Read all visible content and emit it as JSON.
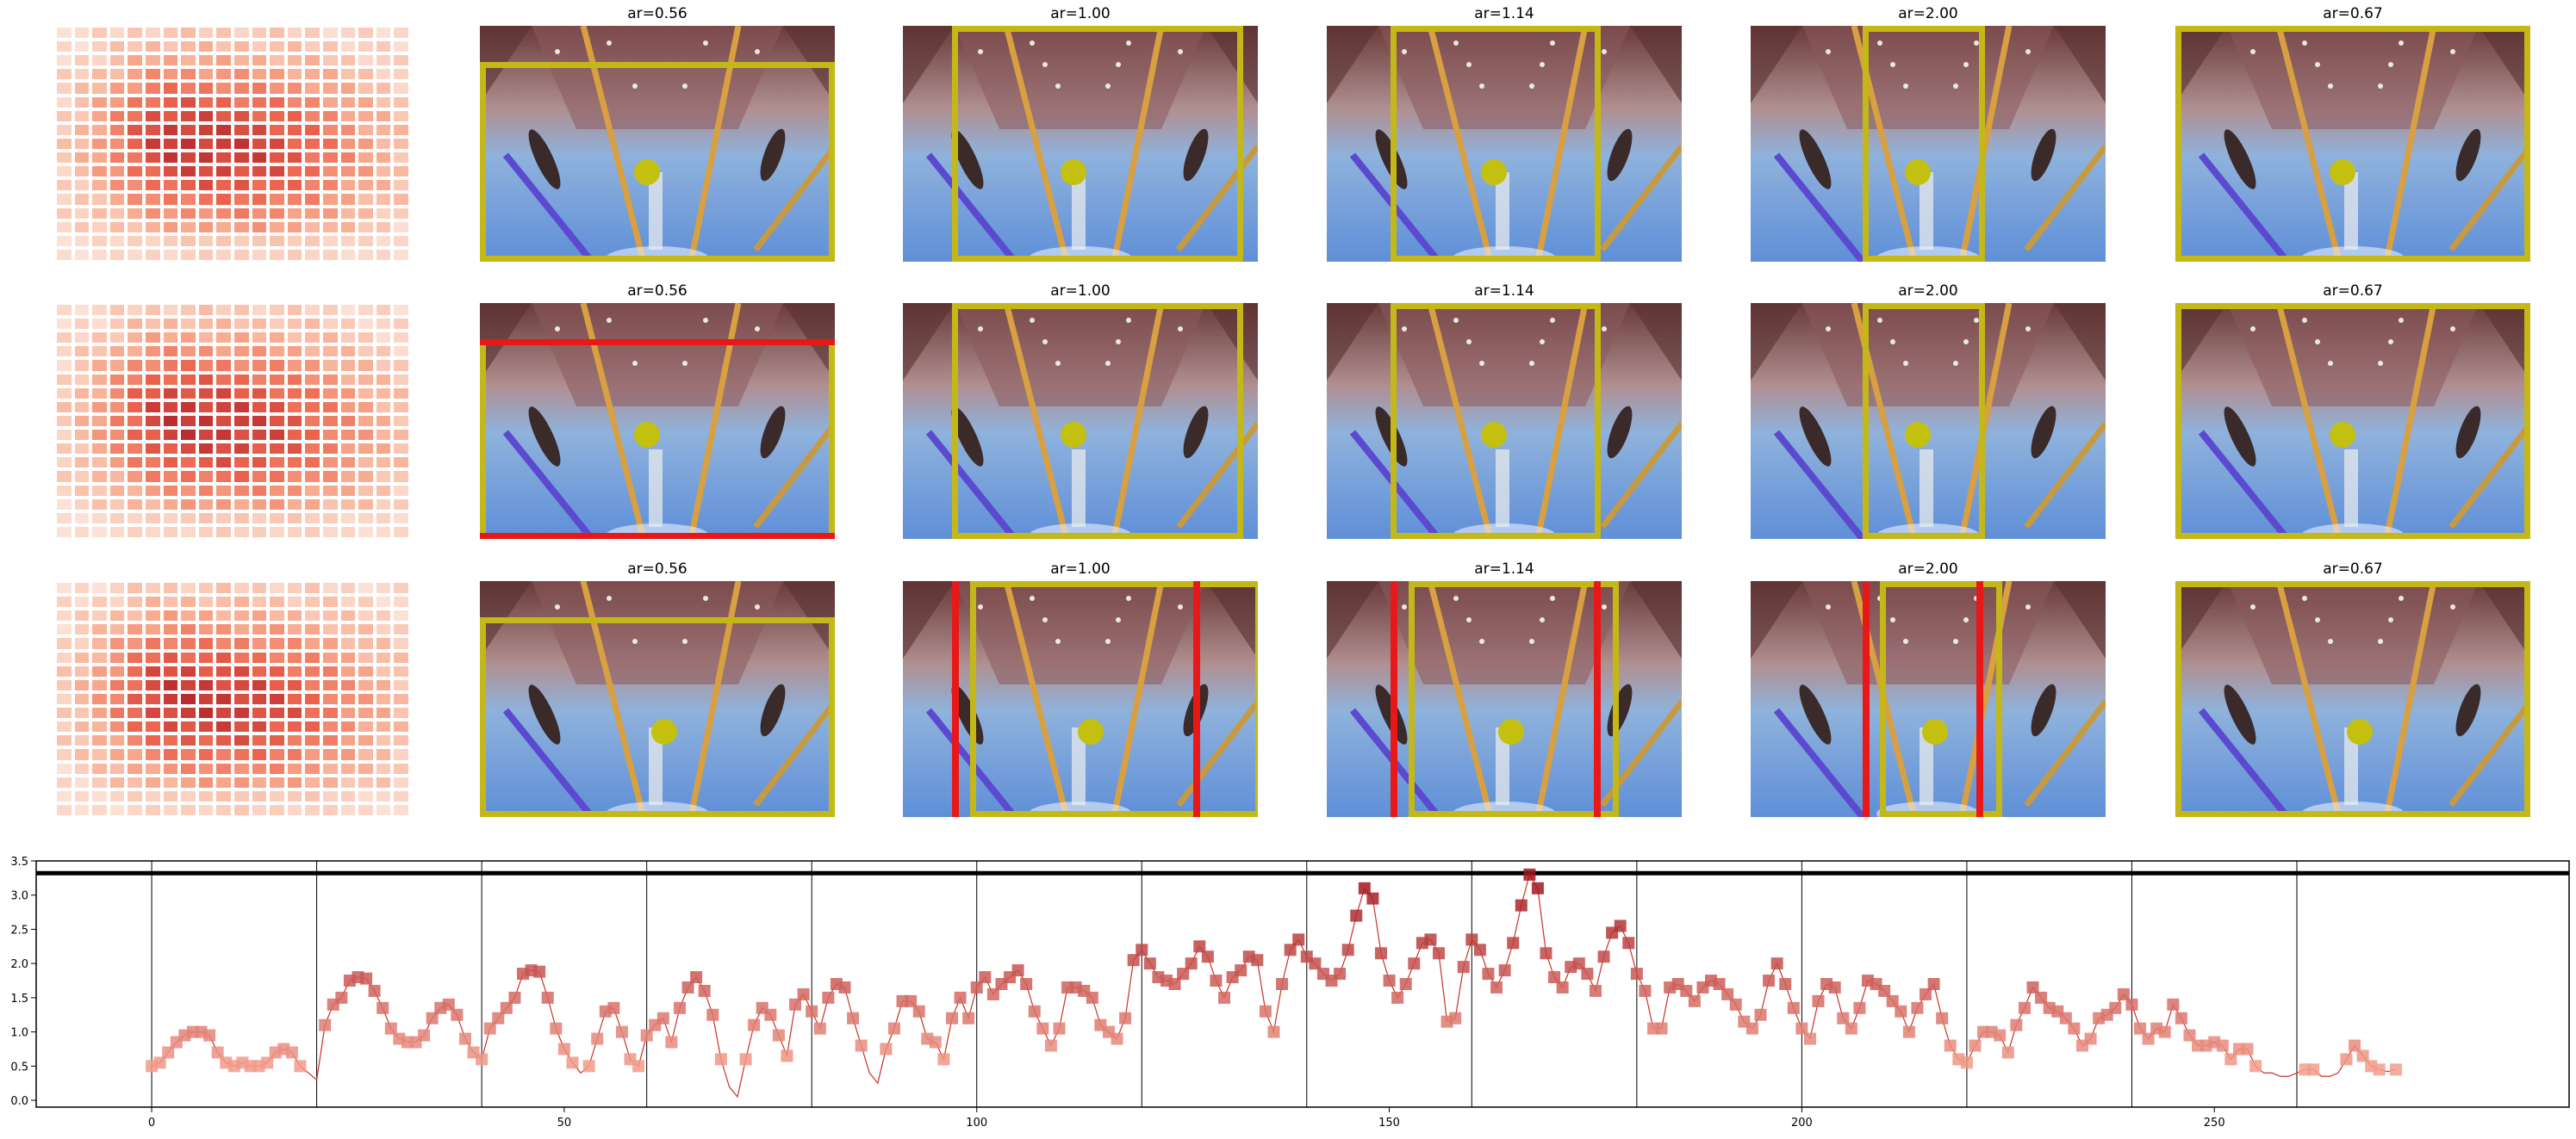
{
  "figure": {
    "rows": [
      {
        "panels": [
          {
            "title": "ar=0.56",
            "aspect": 0.56,
            "dot": [
              0.47,
              0.62
            ],
            "left_red": false,
            "right_red": false,
            "bottom_red": false,
            "top_red": false
          },
          {
            "title": "ar=1.00",
            "aspect": 1.0,
            "dot": [
              0.48,
              0.62
            ],
            "left_red": false,
            "right_red": false,
            "bottom_red": false,
            "top_red": false
          },
          {
            "title": "ar=1.14",
            "aspect": 1.14,
            "dot": [
              0.47,
              0.62
            ],
            "left_red": false,
            "right_red": false,
            "bottom_red": false,
            "top_red": false
          },
          {
            "title": "ar=2.00",
            "aspect": 2.0,
            "dot": [
              0.47,
              0.62
            ],
            "left_red": false,
            "right_red": false,
            "bottom_red": false,
            "top_red": false
          },
          {
            "title": "ar=0.67",
            "aspect": 0.67,
            "dot": [
              0.47,
              0.62
            ],
            "left_red": false,
            "right_red": false,
            "bottom_red": false,
            "top_red": false
          }
        ]
      },
      {
        "panels": [
          {
            "title": "ar=0.56",
            "aspect": 0.56,
            "dot": [
              0.47,
              0.56
            ],
            "left_red": false,
            "right_red": false,
            "bottom_red": true,
            "top_red": true
          },
          {
            "title": "ar=1.00",
            "aspect": 1.0,
            "dot": [
              0.48,
              0.56
            ],
            "left_red": false,
            "right_red": false,
            "bottom_red": false,
            "top_red": false
          },
          {
            "title": "ar=1.14",
            "aspect": 1.14,
            "dot": [
              0.47,
              0.56
            ],
            "left_red": false,
            "right_red": false,
            "bottom_red": false,
            "top_red": false
          },
          {
            "title": "ar=2.00",
            "aspect": 2.0,
            "dot": [
              0.47,
              0.56
            ],
            "left_red": false,
            "right_red": false,
            "bottom_red": false,
            "top_red": false
          },
          {
            "title": "ar=0.67",
            "aspect": 0.67,
            "dot": [
              0.47,
              0.56
            ],
            "left_red": false,
            "right_red": false,
            "bottom_red": false,
            "top_red": false
          }
        ]
      },
      {
        "panels": [
          {
            "title": "ar=0.56",
            "aspect": 0.56,
            "dot": [
              0.52,
              0.64
            ],
            "left_red": false,
            "right_red": false,
            "bottom_red": false,
            "top_red": false
          },
          {
            "title": "ar=1.00",
            "aspect": 1.0,
            "dot": [
              0.53,
              0.64
            ],
            "left_red": true,
            "right_red": true,
            "bottom_red": false,
            "top_red": false
          },
          {
            "title": "ar=1.14",
            "aspect": 1.14,
            "dot": [
              0.52,
              0.64
            ],
            "left_red": true,
            "right_red": true,
            "bottom_red": false,
            "top_red": false
          },
          {
            "title": "ar=2.00",
            "aspect": 2.0,
            "dot": [
              0.52,
              0.64
            ],
            "left_red": true,
            "right_red": true,
            "bottom_red": false,
            "top_red": false
          },
          {
            "title": "ar=0.67",
            "aspect": 0.67,
            "dot": [
              0.52,
              0.64
            ],
            "left_red": false,
            "right_red": false,
            "bottom_red": false,
            "top_red": false
          }
        ]
      }
    ],
    "colors": {
      "box": "#c4b818",
      "red": "#e81818",
      "dot": "#c4c010",
      "line": "#c83226",
      "black": "#000000"
    }
  },
  "chart_data": {
    "type": "line",
    "xlim": [
      -14,
      293
    ],
    "ylim": [
      -0.1,
      3.5
    ],
    "xticks": [
      0,
      50,
      100,
      150,
      200,
      250
    ],
    "yticks": [
      0.0,
      0.5,
      1.0,
      1.5,
      2.0,
      2.5,
      3.0,
      3.5
    ],
    "xtick_labels": [
      "0",
      "50",
      "100",
      "150",
      "200",
      "250"
    ],
    "ytick_labels": [
      "0.0",
      "0.5",
      "1.0",
      "1.5",
      "2.0",
      "2.5",
      "3.0",
      "3.5"
    ],
    "vlines": [
      0,
      20,
      40,
      60,
      80,
      100,
      120,
      140,
      160,
      180,
      200,
      220,
      240,
      260
    ],
    "hline": 3.32,
    "series": [
      {
        "x_start": 0,
        "values": [
          0.5,
          0.55,
          0.7,
          0.85,
          0.95,
          1.0,
          1.0,
          0.95,
          0.7,
          0.55,
          0.5,
          0.55,
          0.5,
          0.5,
          0.55,
          0.7,
          0.75,
          0.7,
          0.5,
          0.4,
          0.3,
          1.1,
          1.4,
          1.5,
          1.75,
          1.8,
          1.78,
          1.6,
          1.35,
          1.05,
          0.9,
          0.85,
          0.85,
          0.95,
          1.2,
          1.35,
          1.4,
          1.25,
          0.9,
          0.7,
          0.6,
          1.05,
          1.2,
          1.35,
          1.5,
          1.85,
          1.9,
          1.88,
          1.5,
          1.05,
          0.75,
          0.55,
          0.4,
          0.5,
          0.9,
          1.3,
          1.35,
          1.0,
          0.6,
          0.5,
          0.95,
          1.1,
          1.2,
          0.85,
          1.35,
          1.65,
          1.8,
          1.6,
          1.25,
          0.6,
          0.2,
          0.05,
          0.6,
          1.1,
          1.35,
          1.25,
          0.95,
          0.65,
          1.4,
          1.55,
          1.3,
          1.05,
          1.5,
          1.7,
          1.65,
          1.2,
          0.8,
          0.4,
          0.25,
          0.75,
          1.05,
          1.45,
          1.45,
          1.3,
          0.9,
          0.85,
          0.6,
          1.2,
          1.5,
          1.2,
          1.65,
          1.8,
          1.55,
          1.7,
          1.8,
          1.9,
          1.7,
          1.3,
          1.05,
          0.8,
          1.05,
          1.65,
          1.65,
          1.6,
          1.5,
          1.1,
          1.0,
          0.9,
          1.2,
          2.05,
          2.2,
          2.0,
          1.8,
          1.75,
          1.7,
          1.85,
          2.0,
          2.25,
          2.1,
          1.75,
          1.5,
          1.8,
          1.9,
          2.1,
          2.05,
          1.3,
          1.0,
          1.7,
          2.2,
          2.35,
          2.1,
          2.0,
          1.85,
          1.75,
          1.85,
          2.2,
          2.7,
          3.1,
          2.95,
          2.15,
          1.75,
          1.5,
          1.7,
          2.0,
          2.3,
          2.35,
          2.15,
          1.15,
          1.2,
          1.95,
          2.35,
          2.2,
          1.85,
          1.65,
          1.9,
          2.3,
          2.85,
          3.3,
          3.1,
          2.15,
          1.8,
          1.65,
          1.95,
          2.0,
          1.85,
          1.6,
          2.1,
          2.45,
          2.55,
          2.3,
          1.85,
          1.6,
          1.05,
          1.05,
          1.65,
          1.7,
          1.6,
          1.45,
          1.65,
          1.75,
          1.7,
          1.55,
          1.4,
          1.15,
          1.05,
          1.25,
          1.75,
          2.0,
          1.7,
          1.35,
          1.05,
          0.9,
          1.45,
          1.7,
          1.65,
          1.2,
          1.05,
          1.35,
          1.75,
          1.7,
          1.6,
          1.45,
          1.3,
          1.0,
          1.35,
          1.55,
          1.7,
          1.2,
          0.8,
          0.6,
          0.55,
          0.8,
          1.0,
          1.0,
          0.95,
          0.7,
          1.1,
          1.35,
          1.65,
          1.5,
          1.35,
          1.3,
          1.2,
          1.05,
          0.8,
          0.9,
          1.2,
          1.25,
          1.35,
          1.55,
          1.4,
          1.05,
          0.9,
          1.05,
          1.0,
          1.4,
          1.2,
          0.95,
          0.8,
          0.8,
          0.85,
          0.8,
          0.6,
          0.75,
          0.75,
          0.5,
          0.4,
          0.4,
          0.35,
          0.35,
          0.4,
          0.45,
          0.45,
          0.35,
          0.35,
          0.4,
          0.6,
          0.8,
          0.65,
          0.5,
          0.45,
          0.42,
          0.45
        ]
      }
    ]
  }
}
